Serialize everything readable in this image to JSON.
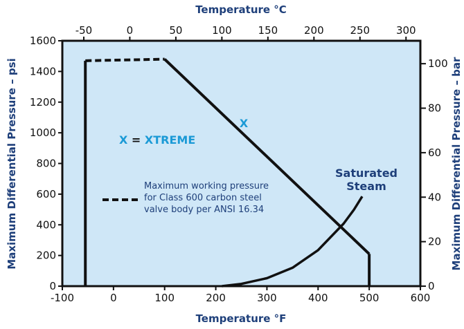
{
  "chart_data": {
    "type": "line",
    "title": "",
    "colors": {
      "plot_background": "#cfe7f7",
      "axis_title": "#1e3f7a",
      "x_label": "#1b9ad6",
      "curve": "#111111"
    },
    "grid": false,
    "axes": {
      "bottom": {
        "label": "Temperature °F",
        "range": [
          -100,
          600
        ],
        "ticks": [
          -100,
          0,
          100,
          200,
          300,
          400,
          500,
          600
        ]
      },
      "top": {
        "label": "Temperature °C",
        "range": [
          -73.3,
          315.6
        ],
        "ticks": [
          -50,
          0,
          50,
          100,
          150,
          200,
          250,
          300
        ]
      },
      "left": {
        "label": "Maximum Differential Pressure – psi",
        "range": [
          0,
          1600
        ],
        "ticks": [
          0,
          200,
          400,
          600,
          800,
          1000,
          1200,
          1400,
          1600
        ]
      },
      "right": {
        "label": "Maximum Differential Pressure – bar",
        "range": [
          0,
          110.3
        ],
        "ticks": [
          0,
          20,
          40,
          60,
          80,
          100
        ]
      }
    },
    "series": [
      {
        "label": "X",
        "style": "solid",
        "points": [
          [
            -55,
            0
          ],
          [
            -55,
            1470
          ],
          [
            100,
            1480
          ],
          [
            500,
            210
          ],
          [
            500,
            0
          ]
        ]
      },
      {
        "label": "Maximum working pressure for Class 600 carbon steel valve body per ANSI 16.34",
        "style": "dashed",
        "points": [
          [
            -55,
            1470
          ],
          [
            100,
            1480
          ]
        ]
      },
      {
        "label": "Saturated Steam",
        "style": "solid",
        "points": [
          [
            212,
            0
          ],
          [
            250,
            15
          ],
          [
            300,
            52
          ],
          [
            350,
            120
          ],
          [
            400,
            235
          ],
          [
            450,
            408
          ],
          [
            470,
            498
          ],
          [
            486.2,
            585
          ]
        ]
      }
    ],
    "annotations": {
      "x_marker": "X",
      "x_key_x": "X",
      "x_key_eq": " = ",
      "x_key_name": "XTREME",
      "steam_line1": "Saturated",
      "steam_line2": "Steam",
      "legend_lines": [
        "Maximum working pressure",
        "for Class 600 carbon steel",
        "valve body per ANSI 16.34"
      ]
    }
  }
}
